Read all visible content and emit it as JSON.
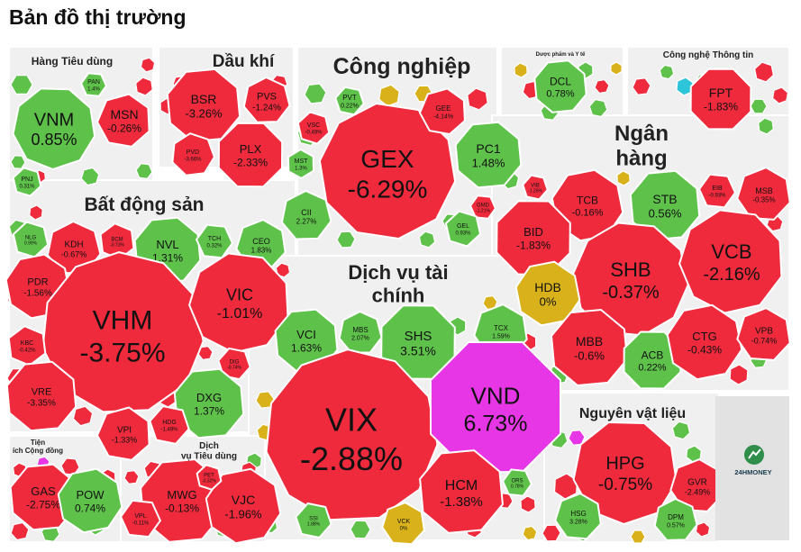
{
  "title": "Bản đồ thị trường",
  "brand": "24HMONEY",
  "colors": {
    "up": "#5ec24a",
    "down": "#ee2a3c",
    "flat": "#d9b11a",
    "ceiling": "#e636e6",
    "floor": "#2ec4d9",
    "panel": "#f0f0f0",
    "gap": "#ffffff"
  },
  "chart_data": {
    "type": "heatmap",
    "title": "Bản đồ thị trường",
    "sectors": [
      {
        "name": "Hàng Tiêu dùng",
        "stocks": [
          {
            "ticker": "VNM",
            "change": 0.85
          },
          {
            "ticker": "MSN",
            "change": -0.26
          },
          {
            "ticker": "PAN",
            "change": 1.4
          },
          {
            "ticker": "PNJ",
            "change": 0.31
          }
        ]
      },
      {
        "name": "Dầu khí",
        "stocks": [
          {
            "ticker": "BSR",
            "change": -3.26
          },
          {
            "ticker": "PVS",
            "change": -1.24
          },
          {
            "ticker": "PLX",
            "change": -2.33
          },
          {
            "ticker": "PVD",
            "change": -3.66
          }
        ]
      },
      {
        "name": "Công nghiệp",
        "stocks": [
          {
            "ticker": "GEX",
            "change": -6.29
          },
          {
            "ticker": "PC1",
            "change": 1.48
          },
          {
            "ticker": "PVT",
            "change": 0.22
          },
          {
            "ticker": "GEE",
            "change": -4.14
          },
          {
            "ticker": "VSC",
            "change": -0.49
          },
          {
            "ticker": "MST",
            "change": 1.3
          },
          {
            "ticker": "CII",
            "change": 2.27
          },
          {
            "ticker": "GMD",
            "change": -1.21
          },
          {
            "ticker": "GEL",
            "change": 0.93
          }
        ]
      },
      {
        "name": "Dược phẩm và Y tế",
        "stocks": [
          {
            "ticker": "DCL",
            "change": 0.78
          }
        ]
      },
      {
        "name": "Công nghệ Thông tin",
        "stocks": [
          {
            "ticker": "FPT",
            "change": -1.83
          }
        ]
      },
      {
        "name": "Ngân hàng",
        "stocks": [
          {
            "ticker": "TCB",
            "change": -0.16
          },
          {
            "ticker": "STB",
            "change": 0.56
          },
          {
            "ticker": "EIB",
            "change": -0.93
          },
          {
            "ticker": "MSB",
            "change": -0.35
          },
          {
            "ticker": "VIB",
            "change": -1.26
          },
          {
            "ticker": "BID",
            "change": -1.83
          },
          {
            "ticker": "SHB",
            "change": -0.37
          },
          {
            "ticker": "VCB",
            "change": -2.16
          },
          {
            "ticker": "HDB",
            "change": 0
          },
          {
            "ticker": "MBB",
            "change": -0.6
          },
          {
            "ticker": "ACB",
            "change": 0.22
          },
          {
            "ticker": "CTG",
            "change": -0.43
          },
          {
            "ticker": "VPB",
            "change": -0.74
          }
        ]
      },
      {
        "name": "Bất động sản",
        "stocks": [
          {
            "ticker": "NLG",
            "change": 0.99
          },
          {
            "ticker": "KDH",
            "change": -0.67
          },
          {
            "ticker": "BCM",
            "change": -0.73
          },
          {
            "ticker": "NVL",
            "change": 1.31
          },
          {
            "ticker": "TCH",
            "change": 0.32
          },
          {
            "ticker": "CEO",
            "change": 1.83
          },
          {
            "ticker": "PDR",
            "change": -1.56
          },
          {
            "ticker": "VHM",
            "change": -3.75
          },
          {
            "ticker": "VIC",
            "change": -1.01
          },
          {
            "ticker": "KBC",
            "change": -0.42
          },
          {
            "ticker": "VRE",
            "change": -3.35
          },
          {
            "ticker": "DIG",
            "change": -0.74
          },
          {
            "ticker": "DXG",
            "change": 1.37
          },
          {
            "ticker": "VPI",
            "change": -1.33
          },
          {
            "ticker": "HDG",
            "change": -1.49
          }
        ]
      },
      {
        "name": "Dịch vụ tài chính",
        "stocks": [
          {
            "ticker": "VCI",
            "change": 1.63
          },
          {
            "ticker": "MBS",
            "change": 2.07
          },
          {
            "ticker": "SHS",
            "change": 3.51
          },
          {
            "ticker": "TCX",
            "change": 1.59
          },
          {
            "ticker": "VIX",
            "change": -2.88
          },
          {
            "ticker": "VND",
            "change": 6.73
          },
          {
            "ticker": "HCM",
            "change": -1.38
          },
          {
            "ticker": "SSI",
            "change": 1.88
          },
          {
            "ticker": "VCK",
            "change": 0
          },
          {
            "ticker": "ORS",
            "change": 0.78
          }
        ]
      },
      {
        "name": "Tiện ích Cộng đồng",
        "stocks": [
          {
            "ticker": "GAS",
            "change": -2.75
          },
          {
            "ticker": "POW",
            "change": 0.74
          }
        ]
      },
      {
        "name": "Dịch vụ Tiêu dùng",
        "stocks": [
          {
            "ticker": "MWG",
            "change": -0.13
          },
          {
            "ticker": "VJC",
            "change": -1.96
          },
          {
            "ticker": "PET",
            "change": -0.32
          },
          {
            "ticker": "VPL",
            "change": -0.11
          }
        ]
      },
      {
        "name": "Nguyên vật liệu",
        "stocks": [
          {
            "ticker": "HPG",
            "change": -0.75
          },
          {
            "ticker": "GVR",
            "change": -2.49
          },
          {
            "ticker": "HSG",
            "change": 3.28
          },
          {
            "ticker": "DPM",
            "change": 0.57
          }
        ]
      }
    ]
  },
  "sector_labels": [
    {
      "key": "hang-tieu-dung",
      "lines": [
        "Hàng Tiêu dùng"
      ]
    },
    {
      "key": "dau-khi",
      "lines": [
        "Dầu khí"
      ]
    },
    {
      "key": "cong-nghiep",
      "lines": [
        "Công nghiệp"
      ]
    },
    {
      "key": "duoc-pham",
      "lines": [
        "Dược phẩm và Y tế"
      ]
    },
    {
      "key": "cong-nghe",
      "lines": [
        "Công nghệ Thông tin"
      ]
    },
    {
      "key": "ngan-hang",
      "lines": [
        "Ngân",
        "hàng"
      ]
    },
    {
      "key": "bat-dong-san",
      "lines": [
        "Bất động sản"
      ]
    },
    {
      "key": "dich-vu-tai-chinh",
      "lines": [
        "Dịch vụ tài",
        "chính"
      ]
    },
    {
      "key": "nguyen-vat-lieu",
      "lines": [
        "Nguyên vật liệu"
      ]
    },
    {
      "key": "tien-ich",
      "lines": [
        "Tiện",
        "ích Cộng đồng"
      ]
    },
    {
      "key": "dich-vu-tieu-dung",
      "lines": [
        "Dịch",
        "vụ Tiêu dùng"
      ]
    }
  ],
  "cells": [
    {
      "t": "VNM",
      "c": 0.85,
      "s": "VNM",
      "p": "0.85%"
    },
    {
      "t": "MSN",
      "c": -0.26,
      "s": "MSN",
      "p": "-0.26%"
    },
    {
      "t": "PAN",
      "c": 1.4,
      "s": "PAN",
      "p": "1.4%"
    },
    {
      "t": "PNJ",
      "c": 0.31,
      "s": "PNJ",
      "p": "0.31%"
    },
    {
      "t": "BSR",
      "c": -3.26,
      "s": "BSR",
      "p": "-3.26%"
    },
    {
      "t": "PVS",
      "c": -1.24,
      "s": "PVS",
      "p": "-1.24%"
    },
    {
      "t": "PLX",
      "c": -2.33,
      "s": "PLX",
      "p": "-2.33%"
    },
    {
      "t": "PVD",
      "c": -3.66,
      "s": "PVD",
      "p": "-3.66%"
    },
    {
      "t": "GEX",
      "c": -6.29,
      "s": "GEX",
      "p": "-6.29%"
    },
    {
      "t": "PC1",
      "c": 1.48,
      "s": "PC1",
      "p": "1.48%"
    },
    {
      "t": "PVT",
      "c": 0.22,
      "s": "PVT",
      "p": "0.22%"
    },
    {
      "t": "GEE",
      "c": -4.14,
      "s": "GEE",
      "p": "-4.14%"
    },
    {
      "t": "VSC",
      "c": -0.49,
      "s": "VSC",
      "p": "-0.49%"
    },
    {
      "t": "MST",
      "c": 1.3,
      "s": "MST",
      "p": "1.3%"
    },
    {
      "t": "CII",
      "c": 2.27,
      "s": "CII",
      "p": "2.27%"
    },
    {
      "t": "GMD",
      "c": -1.21,
      "s": "GMD",
      "p": "-1.21%"
    },
    {
      "t": "GEL",
      "c": 0.93,
      "s": "GEL",
      "p": "0.93%"
    },
    {
      "t": "DCL",
      "c": 0.78,
      "s": "DCL",
      "p": "0.78%"
    },
    {
      "t": "FPT",
      "c": -1.83,
      "s": "FPT",
      "p": "-1.83%"
    },
    {
      "t": "TCB",
      "c": -0.16,
      "s": "TCB",
      "p": "-0.16%"
    },
    {
      "t": "STB",
      "c": 0.56,
      "s": "STB",
      "p": "0.56%"
    },
    {
      "t": "EIB",
      "c": -0.93,
      "s": "EIB",
      "p": "-0.93%"
    },
    {
      "t": "MSB",
      "c": -0.35,
      "s": "MSB",
      "p": "-0.35%"
    },
    {
      "t": "VIB",
      "c": -1.26,
      "s": "VIB",
      "p": "-1.26%"
    },
    {
      "t": "BID",
      "c": -1.83,
      "s": "BID",
      "p": "-1.83%"
    },
    {
      "t": "SHB",
      "c": -0.37,
      "s": "SHB",
      "p": "-0.37%"
    },
    {
      "t": "VCB",
      "c": -2.16,
      "s": "VCB",
      "p": "-2.16%"
    },
    {
      "t": "HDB",
      "c": 0,
      "s": "HDB",
      "p": "0%"
    },
    {
      "t": "MBB",
      "c": -0.6,
      "s": "MBB",
      "p": "-0.6%"
    },
    {
      "t": "ACB",
      "c": 0.22,
      "s": "ACB",
      "p": "0.22%"
    },
    {
      "t": "CTG",
      "c": -0.43,
      "s": "CTG",
      "p": "-0.43%"
    },
    {
      "t": "VPB",
      "c": -0.74,
      "s": "VPB",
      "p": "-0.74%"
    },
    {
      "t": "NLG",
      "c": 0.99,
      "s": "NLG",
      "p": "0.99%"
    },
    {
      "t": "KDH",
      "c": -0.67,
      "s": "KDH",
      "p": "-0.67%"
    },
    {
      "t": "BCM",
      "c": -0.73,
      "s": "BCM",
      "p": "-0.73%"
    },
    {
      "t": "NVL",
      "c": 1.31,
      "s": "NVL",
      "p": "1.31%"
    },
    {
      "t": "TCH",
      "c": 0.32,
      "s": "TCH",
      "p": "0.32%"
    },
    {
      "t": "CEO",
      "c": 1.83,
      "s": "CEO",
      "p": "1.83%"
    },
    {
      "t": "PDR",
      "c": -1.56,
      "s": "PDR",
      "p": "-1.56%"
    },
    {
      "t": "VHM",
      "c": -3.75,
      "s": "VHM",
      "p": "-3.75%"
    },
    {
      "t": "VIC",
      "c": -1.01,
      "s": "VIC",
      "p": "-1.01%"
    },
    {
      "t": "KBC",
      "c": -0.42,
      "s": "KBC",
      "p": "-0.42%"
    },
    {
      "t": "VRE",
      "c": -3.35,
      "s": "VRE",
      "p": "-3.35%"
    },
    {
      "t": "DIG",
      "c": -0.74,
      "s": "DIG",
      "p": "-0.74%"
    },
    {
      "t": "DXG",
      "c": 1.37,
      "s": "DXG",
      "p": "1.37%"
    },
    {
      "t": "VPI",
      "c": -1.33,
      "s": "VPI",
      "p": "-1.33%"
    },
    {
      "t": "HDG",
      "c": -1.49,
      "s": "HDG",
      "p": "-1.49%"
    },
    {
      "t": "VCI",
      "c": 1.63,
      "s": "VCI",
      "p": "1.63%"
    },
    {
      "t": "MBS",
      "c": 2.07,
      "s": "MBS",
      "p": "2.07%"
    },
    {
      "t": "SHS",
      "c": 3.51,
      "s": "SHS",
      "p": "3.51%"
    },
    {
      "t": "TCX",
      "c": 1.59,
      "s": "TCX",
      "p": "1.59%"
    },
    {
      "t": "VIX",
      "c": -2.88,
      "s": "VIX",
      "p": "-2.88%"
    },
    {
      "t": "VND",
      "c": 6.73,
      "s": "VND",
      "p": "6.73%"
    },
    {
      "t": "HCM",
      "c": -1.38,
      "s": "HCM",
      "p": "-1.38%"
    },
    {
      "t": "SSI",
      "c": 1.88,
      "s": "SSI",
      "p": "1.88%"
    },
    {
      "t": "VCK",
      "c": 0,
      "s": "VCK",
      "p": "0%"
    },
    {
      "t": "ORS",
      "c": 0.78,
      "s": "ORS",
      "p": "0.78%"
    },
    {
      "t": "GAS",
      "c": -2.75,
      "s": "GAS",
      "p": "-2.75%"
    },
    {
      "t": "POW",
      "c": 0.74,
      "s": "POW",
      "p": "0.74%"
    },
    {
      "t": "MWG",
      "c": -0.13,
      "s": "MWG",
      "p": "-0.13%"
    },
    {
      "t": "VJC",
      "c": -1.96,
      "s": "VJC",
      "p": "-1.96%"
    },
    {
      "t": "PET",
      "c": -0.32,
      "s": "PET",
      "p": "-0.32%"
    },
    {
      "t": "VPL",
      "c": -0.11,
      "s": "VPL",
      "p": "-0.11%"
    },
    {
      "t": "HPG",
      "c": -0.75,
      "s": "HPG",
      "p": "-0.75%"
    },
    {
      "t": "GVR",
      "c": -2.49,
      "s": "GVR",
      "p": "-2.49%"
    },
    {
      "t": "HSG",
      "c": 3.28,
      "s": "HSG",
      "p": "3.28%"
    },
    {
      "t": "DPM",
      "c": 0.57,
      "s": "DPM",
      "p": "0.57%"
    }
  ]
}
